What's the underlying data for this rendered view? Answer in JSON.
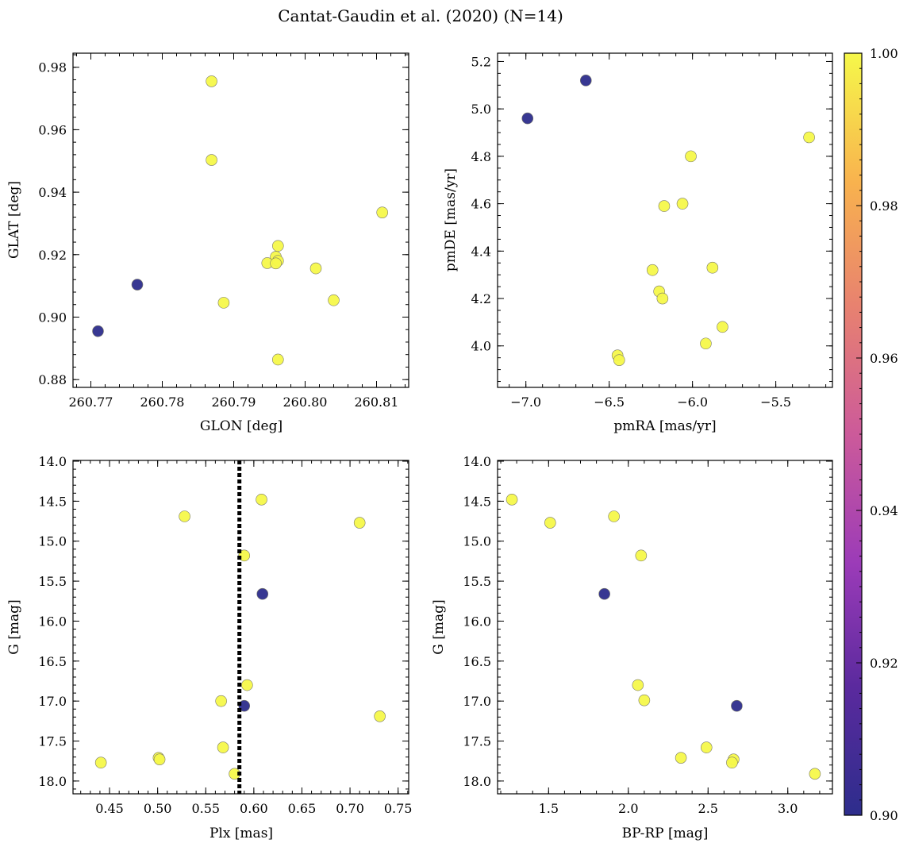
{
  "figure_title": "Cantat-Gaudin et al. (2020) (N=14)",
  "chart_data": [
    {
      "type": "scatter",
      "name": "glon-glat",
      "xlabel": "GLON [deg]",
      "ylabel": "GLAT [deg]",
      "xlim": [
        260.7675,
        260.8145
      ],
      "ylim": [
        0.8775,
        0.9845
      ],
      "xticks": [
        260.77,
        260.78,
        260.79,
        260.8,
        260.81
      ],
      "xtick_labels": [
        "260.77",
        "260.78",
        "260.79",
        "260.80",
        "260.81"
      ],
      "yticks": [
        0.88,
        0.9,
        0.92,
        0.94,
        0.96,
        0.98
      ],
      "ytick_labels": [
        "0.88",
        "0.90",
        "0.92",
        "0.94",
        "0.96",
        "0.98"
      ],
      "x_minor_step": 0.002,
      "y_minor_step": 0.004,
      "y_inverted": false,
      "x": [
        260.7869,
        260.7869,
        260.8108,
        260.7962,
        260.7959,
        260.7962,
        260.7947,
        260.7959,
        260.8015,
        260.804,
        260.7886,
        260.7962,
        260.7765,
        260.771
      ],
      "y": [
        0.9755,
        0.9503,
        0.9335,
        0.9228,
        0.9193,
        0.918,
        0.9173,
        0.9172,
        0.9156,
        0.9054,
        0.9046,
        0.8864,
        0.9104,
        0.8955
      ],
      "c": [
        1,
        1,
        1,
        1,
        1,
        1,
        1,
        1,
        1,
        1,
        1,
        1,
        0.9,
        0.9
      ]
    },
    {
      "type": "scatter",
      "name": "pmra-pmde",
      "xlabel": "pmRA [mas/yr]",
      "ylabel": "pmDE [mas/yr]",
      "xlim": [
        -7.17,
        -5.16
      ],
      "ylim": [
        3.825,
        5.235
      ],
      "xticks": [
        -7.0,
        -6.5,
        -6.0,
        -5.5
      ],
      "xtick_labels": [
        "−7.0",
        "−6.5",
        "−6.0",
        "−5.5"
      ],
      "yticks": [
        4.0,
        4.2,
        4.4,
        4.6,
        4.8,
        5.0,
        5.2
      ],
      "ytick_labels": [
        "4.0",
        "4.2",
        "4.4",
        "4.6",
        "4.8",
        "5.0",
        "5.2"
      ],
      "x_minor_step": 0.1,
      "y_minor_step": 0.05,
      "y_inverted": false,
      "x": [
        -5.3,
        -6.01,
        -6.06,
        -6.17,
        -6.24,
        -5.88,
        -6.2,
        -6.18,
        -5.82,
        -5.92,
        -6.45,
        -6.44,
        -6.99,
        -6.64
      ],
      "y": [
        4.88,
        4.8,
        4.6,
        4.59,
        4.32,
        4.33,
        4.23,
        4.2,
        4.08,
        4.01,
        3.96,
        3.94,
        4.96,
        5.12
      ],
      "c": [
        1,
        1,
        1,
        1,
        1,
        1,
        1,
        1,
        1,
        1,
        1,
        1,
        0.9,
        0.9
      ]
    },
    {
      "type": "scatter",
      "name": "plx-g",
      "xlabel": "Plx [mas]",
      "ylabel": "G [mag]",
      "xlim": [
        0.412,
        0.761
      ],
      "ylim": [
        13.99,
        18.16
      ],
      "xticks": [
        0.45,
        0.5,
        0.55,
        0.6,
        0.65,
        0.7,
        0.75
      ],
      "xtick_labels": [
        "0.45",
        "0.50",
        "0.55",
        "0.60",
        "0.65",
        "0.70",
        "0.75"
      ],
      "yticks": [
        14.0,
        14.5,
        15.0,
        15.5,
        16.0,
        16.5,
        17.0,
        17.5,
        18.0
      ],
      "ytick_labels": [
        "14.0",
        "14.5",
        "15.0",
        "15.5",
        "16.0",
        "16.5",
        "17.0",
        "17.5",
        "18.0"
      ],
      "x_minor_step": 0.01,
      "y_minor_step": 0.1,
      "y_inverted": true,
      "vline_x": 0.585,
      "x": [
        0.608,
        0.528,
        0.71,
        0.59,
        0.593,
        0.566,
        0.731,
        0.568,
        0.501,
        0.502,
        0.441,
        0.58,
        0.609,
        0.59
      ],
      "y": [
        14.48,
        14.69,
        14.77,
        15.18,
        16.8,
        17.0,
        17.19,
        17.58,
        17.71,
        17.73,
        17.77,
        17.91,
        15.66,
        17.06
      ],
      "c": [
        1,
        1,
        1,
        1,
        1,
        1,
        1,
        1,
        1,
        1,
        1,
        1,
        0.9,
        0.9
      ]
    },
    {
      "type": "scatter",
      "name": "bprp-g",
      "xlabel": "BP-RP [mag]",
      "ylabel": "G [mag]",
      "xlim": [
        1.18,
        3.28
      ],
      "ylim": [
        13.99,
        18.16
      ],
      "xticks": [
        1.5,
        2.0,
        2.5,
        3.0
      ],
      "xtick_labels": [
        "1.5",
        "2.0",
        "2.5",
        "3.0"
      ],
      "yticks": [
        14.0,
        14.5,
        15.0,
        15.5,
        16.0,
        16.5,
        17.0,
        17.5,
        18.0
      ],
      "ytick_labels": [
        "14.0",
        "14.5",
        "15.0",
        "15.5",
        "16.0",
        "16.5",
        "17.0",
        "17.5",
        "18.0"
      ],
      "x_minor_step": 0.1,
      "y_minor_step": 0.1,
      "y_inverted": true,
      "x": [
        1.27,
        1.91,
        1.51,
        2.08,
        2.06,
        2.1,
        2.49,
        2.33,
        2.66,
        2.65,
        3.17,
        1.85,
        2.68
      ],
      "y": [
        14.48,
        14.69,
        14.77,
        15.18,
        16.8,
        16.99,
        17.58,
        17.71,
        17.73,
        17.77,
        17.91,
        15.66,
        17.06
      ],
      "c": [
        1,
        1,
        1,
        1,
        1,
        1,
        1,
        1,
        1,
        1,
        1,
        0.9,
        0.9
      ]
    }
  ],
  "colorbar": {
    "range": [
      0.9,
      1.0
    ],
    "ticks": [
      0.9,
      0.92,
      0.94,
      0.96,
      0.98,
      1.0
    ],
    "tick_labels": [
      "0.90",
      "0.92",
      "0.94",
      "0.96",
      "0.98",
      "1.00"
    ],
    "colormap": "plasma",
    "stops": [
      "#2d2d8c",
      "#5b2a9e",
      "#9b3bb8",
      "#cc5a9a",
      "#e8826f",
      "#f8b24e",
      "#f6f84a"
    ]
  },
  "colors": {
    "low": "#3a3591",
    "high": "#f0f240",
    "marker_edge": "#7a7a6a",
    "vline": "#000000"
  }
}
